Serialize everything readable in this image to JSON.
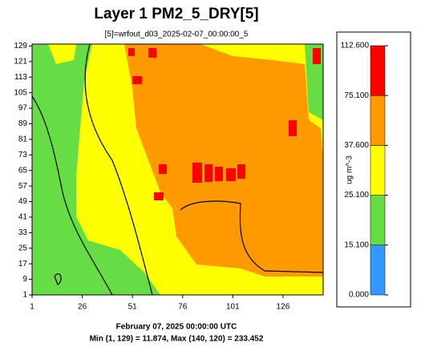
{
  "chart_data": {
    "type": "tile-map",
    "title": "Layer 1 PM2_5_DRY[5]",
    "subtitle": "[5]=wrfout_d03_2025-02-07_00:00:00_5",
    "xlim": [
      1,
      146
    ],
    "ylim": [
      1,
      130
    ],
    "xticks": [
      1,
      26,
      51,
      76,
      101,
      126
    ],
    "yticks": [
      1,
      9,
      17,
      25,
      33,
      41,
      49,
      57,
      65,
      73,
      81,
      89,
      97,
      105,
      113,
      121,
      129
    ],
    "legend": {
      "title": "ug m^-3",
      "levels": [
        {
          "value": 0,
          "label": "0.000"
        },
        {
          "value": 15.1,
          "label": "15.100"
        },
        {
          "value": 25.1,
          "label": "25.100"
        },
        {
          "value": 37.6,
          "label": "37.600"
        },
        {
          "value": 75.1,
          "label": "75.100"
        },
        {
          "value": 112.6,
          "label": "112.600"
        }
      ],
      "colors": [
        "#3399ff",
        "#66dd44",
        "#ffff00",
        "#ff9900",
        "#ff0000"
      ]
    },
    "footer": [
      "February 07, 2025 00:00:00 UTC",
      "Min (1, 129) = 11.874, Max (140, 120) = 233.452"
    ]
  }
}
